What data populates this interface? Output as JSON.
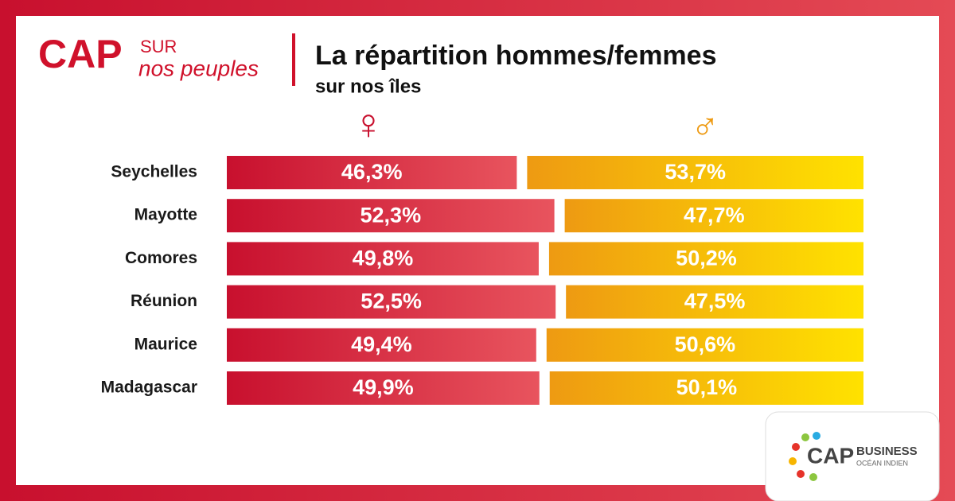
{
  "logo": {
    "cap": "CAP",
    "sur": "SUR",
    "tagline": "nos peuples"
  },
  "footer_logo": {
    "cap": "CAP",
    "business": "BUSINESS",
    "region": "OCÉAN INDIEN"
  },
  "chart_data": {
    "type": "bar",
    "orientation": "horizontal",
    "stacked": true,
    "title": "La répartition hommes/femmes",
    "subtitle": "sur nos îles",
    "categories": [
      "Seychelles",
      "Mayotte",
      "Comores",
      "Réunion",
      "Maurice",
      "Madagascar"
    ],
    "xlim": [
      0,
      100
    ],
    "series": [
      {
        "name": "♀",
        "color": "#c8102e",
        "values": [
          46.3,
          52.3,
          49.8,
          52.5,
          49.4,
          49.9
        ],
        "value_labels": [
          "46,3%",
          "52,3%",
          "49,8%",
          "52,5%",
          "49,4%",
          "49,9%"
        ]
      },
      {
        "name": "♂",
        "color": "#ee9a12",
        "values": [
          53.7,
          47.7,
          50.2,
          47.5,
          50.6,
          50.1
        ],
        "value_labels": [
          "53,7%",
          "47,7%",
          "50,2%",
          "47,5%",
          "50,6%",
          "50,1%"
        ]
      }
    ]
  }
}
